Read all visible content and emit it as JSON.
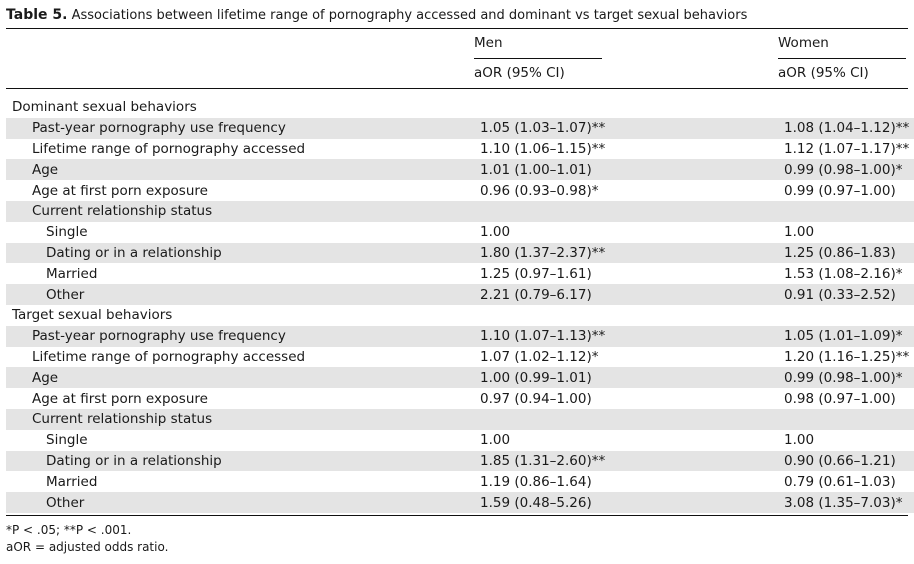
{
  "caption": {
    "label": "Table 5.",
    "text": "Associations between lifetime range of pornography accessed and dominant vs target sexual behaviors"
  },
  "headers": {
    "men": "Men",
    "women": "Women",
    "men_sub": "aOR (95% CI)",
    "women_sub": "aOR (95% CI)"
  },
  "rows": [
    {
      "label": "Dominant sexual behaviors",
      "level": 0,
      "shade": false,
      "men": "",
      "women": ""
    },
    {
      "label": "Past-year pornography use frequency",
      "level": 1,
      "shade": true,
      "men": "1.05 (1.03–1.07)**",
      "women": "1.08 (1.04–1.12)**"
    },
    {
      "label": "Lifetime range of pornography accessed",
      "level": 1,
      "shade": false,
      "men": "1.10 (1.06–1.15)**",
      "women": "1.12 (1.07–1.17)**"
    },
    {
      "label": "Age",
      "level": 1,
      "shade": true,
      "men": "1.01 (1.00–1.01)",
      "women": "0.99 (0.98–1.00)*"
    },
    {
      "label": "Age at first porn exposure",
      "level": 1,
      "shade": false,
      "men": "0.96 (0.93–0.98)*",
      "women": "0.99 (0.97–1.00)"
    },
    {
      "label": "Current relationship status",
      "level": 1,
      "shade": true,
      "men": "",
      "women": ""
    },
    {
      "label": "Single",
      "level": 2,
      "shade": false,
      "men": "1.00",
      "women": "1.00"
    },
    {
      "label": "Dating or in a relationship",
      "level": 2,
      "shade": true,
      "men": "1.80 (1.37–2.37)**",
      "women": "1.25 (0.86–1.83)"
    },
    {
      "label": "Married",
      "level": 2,
      "shade": false,
      "men": "1.25 (0.97–1.61)",
      "women": "1.53 (1.08–2.16)*"
    },
    {
      "label": "Other",
      "level": 2,
      "shade": true,
      "men": "2.21 (0.79–6.17)",
      "women": "0.91 (0.33–2.52)"
    },
    {
      "label": "Target sexual behaviors",
      "level": 0,
      "shade": false,
      "men": "",
      "women": ""
    },
    {
      "label": "Past-year pornography use frequency",
      "level": 1,
      "shade": true,
      "men": "1.10 (1.07–1.13)**",
      "women": "1.05 (1.01–1.09)*"
    },
    {
      "label": "Lifetime range of pornography accessed",
      "level": 1,
      "shade": false,
      "men": "1.07 (1.02–1.12)*",
      "women": "1.20 (1.16–1.25)**"
    },
    {
      "label": "Age",
      "level": 1,
      "shade": true,
      "men": "1.00 (0.99–1.01)",
      "women": "0.99 (0.98–1.00)*"
    },
    {
      "label": "Age at first porn exposure",
      "level": 1,
      "shade": false,
      "men": "0.97 (0.94–1.00)",
      "women": "0.98 (0.97–1.00)"
    },
    {
      "label": "Current relationship status",
      "level": 1,
      "shade": true,
      "men": "",
      "women": ""
    },
    {
      "label": "Single",
      "level": 2,
      "shade": false,
      "men": "1.00",
      "women": "1.00"
    },
    {
      "label": "Dating or in a relationship",
      "level": 2,
      "shade": true,
      "men": "1.85 (1.31–2.60)**",
      "women": "0.90 (0.66–1.21)"
    },
    {
      "label": "Married",
      "level": 2,
      "shade": false,
      "men": "1.19 (0.86–1.64)",
      "women": "0.79 (0.61–1.03)"
    },
    {
      "label": "Other",
      "level": 2,
      "shade": true,
      "men": "1.59 (0.48–5.26)",
      "women": "3.08 (1.35–7.03)*"
    }
  ],
  "footnotes": {
    "significance": "*P < .05; **P < .001.",
    "abbreviation": "aOR = adjusted odds ratio."
  },
  "colors": {
    "shade": "#e4e4e4",
    "rule": "#111111"
  }
}
